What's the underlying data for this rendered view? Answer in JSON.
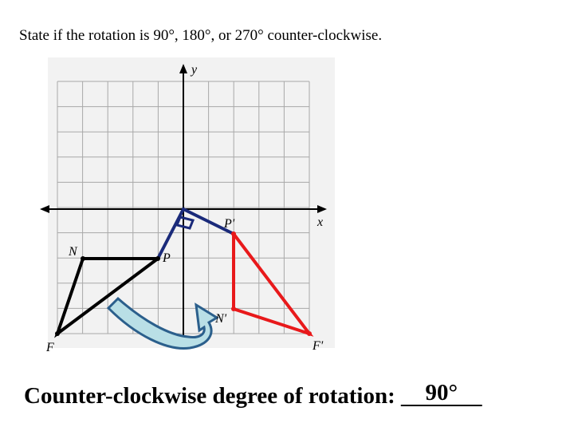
{
  "instruction": "State if the rotation is 90°, 180°, or 270° counter-clockwise.",
  "graph": {
    "y_axis_label": "y",
    "x_axis_label": "x",
    "points": {
      "N": "N",
      "P": "P",
      "F": "F",
      "P_prime": "P'",
      "N_prime": "N'",
      "F_prime": "F'"
    }
  },
  "answer": {
    "prompt": "Counter-clockwise degree of rotation:",
    "blank": "_______",
    "value": "90°"
  }
}
